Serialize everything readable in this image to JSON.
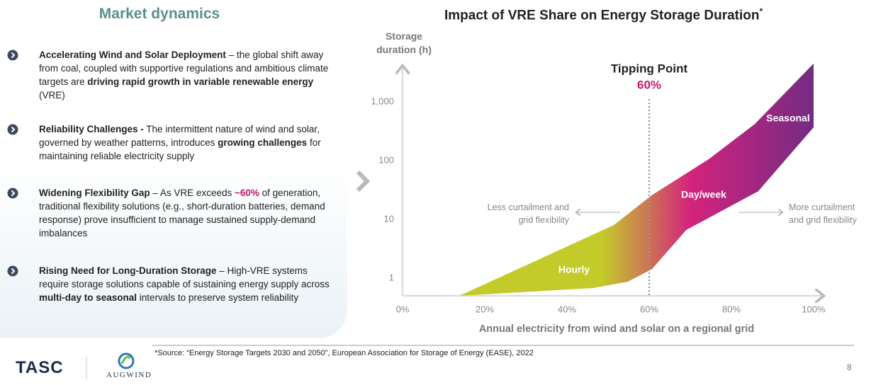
{
  "left_panel": {
    "heading": "Market dynamics",
    "items": [
      {
        "segments": [
          {
            "text": "Accelerating Wind and Solar Deployment",
            "bold": true
          },
          {
            "text": " – the global shift away from coal, coupled with supportive regulations and ambitious climate targets are "
          },
          {
            "text": "driving rapid growth in variable renewable energy",
            "bold": true
          },
          {
            "text": " (VRE)"
          }
        ]
      },
      {
        "segments": [
          {
            "text": "Reliability Challenges -",
            "bold": true
          },
          {
            "text": " The intermittent nature of wind and solar, governed by weather patterns, introduces "
          },
          {
            "text": "growing challenges",
            "bold": true
          },
          {
            "text": " for maintaining reliable electricity supply"
          }
        ]
      },
      {
        "segments": [
          {
            "text": "Widening Flexibility Gap",
            "bold": true
          },
          {
            "text": " – As VRE exceeds "
          },
          {
            "text": "~60%",
            "bold": true,
            "color": "#c4166e"
          },
          {
            "text": " of generation, traditional flexibility solutions (e.g., short-duration batteries, demand response) prove insufficient to manage sustained supply-demand imbalances"
          }
        ]
      },
      {
        "segments": [
          {
            "text": "Rising Need for Long-Duration Storage",
            "bold": true
          },
          {
            "text": " – High-VRE systems require storage solutions capable of sustaining energy supply across "
          },
          {
            "text": "multi-day to seasonal",
            "bold": true
          },
          {
            "text": " intervals to preserve system reliability"
          }
        ]
      }
    ]
  },
  "chart_data": {
    "type": "area_band",
    "title": "Impact of VRE Share on Energy Storage Duration",
    "title_marker": "*",
    "ylabel": "Storage duration (h)",
    "xlabel": "Annual electricity from wind and solar on a regional grid",
    "xlim": [
      0,
      100
    ],
    "xticks": [
      {
        "value": 0,
        "label": "0%"
      },
      {
        "value": 20,
        "label": "20%"
      },
      {
        "value": 40,
        "label": "40%"
      },
      {
        "value": 60,
        "label": "60%"
      },
      {
        "value": 80,
        "label": "80%"
      },
      {
        "value": 100,
        "label": "100%"
      }
    ],
    "ylim": [
      0.5,
      5000
    ],
    "yscale": "log",
    "yticks": [
      1,
      10,
      100,
      {
        "value": 1000,
        "label": "1,000"
      }
    ],
    "series": [
      {
        "x": [
          13.8,
          46.5,
          54.8,
          60.7,
          69,
          86.5,
          100
        ],
        "values": [
          0.5,
          0.68,
          0.87,
          1.43,
          6.6,
          30,
          370
        ]
      },
      {
        "x": [
          13.8,
          51.4,
          60.7,
          74.5,
          85.7,
          100
        ],
        "values": [
          0.5,
          8,
          26,
          106,
          420,
          4500
        ]
      }
    ],
    "colors": [
      "#c3cb2a",
      "#d4237c",
      "#6d2c84"
    ],
    "region_labels": [
      "Hourly",
      "Day/week",
      "Seasonal"
    ],
    "tipping_point": {
      "label": "Tipping Point",
      "value": 60,
      "value_label": "60%"
    },
    "arrow_labels": [
      "Less curtailment and grid flexibility",
      "More curtailment and grid flexibility"
    ]
  },
  "footer": {
    "source": "*Source: “Energy Storage Targets 2030 and 2050”, European Association for Storage of Energy (EASE), 2022",
    "logo_left": "TASC",
    "logo_right": "AUGWIND",
    "page_number": "8"
  }
}
